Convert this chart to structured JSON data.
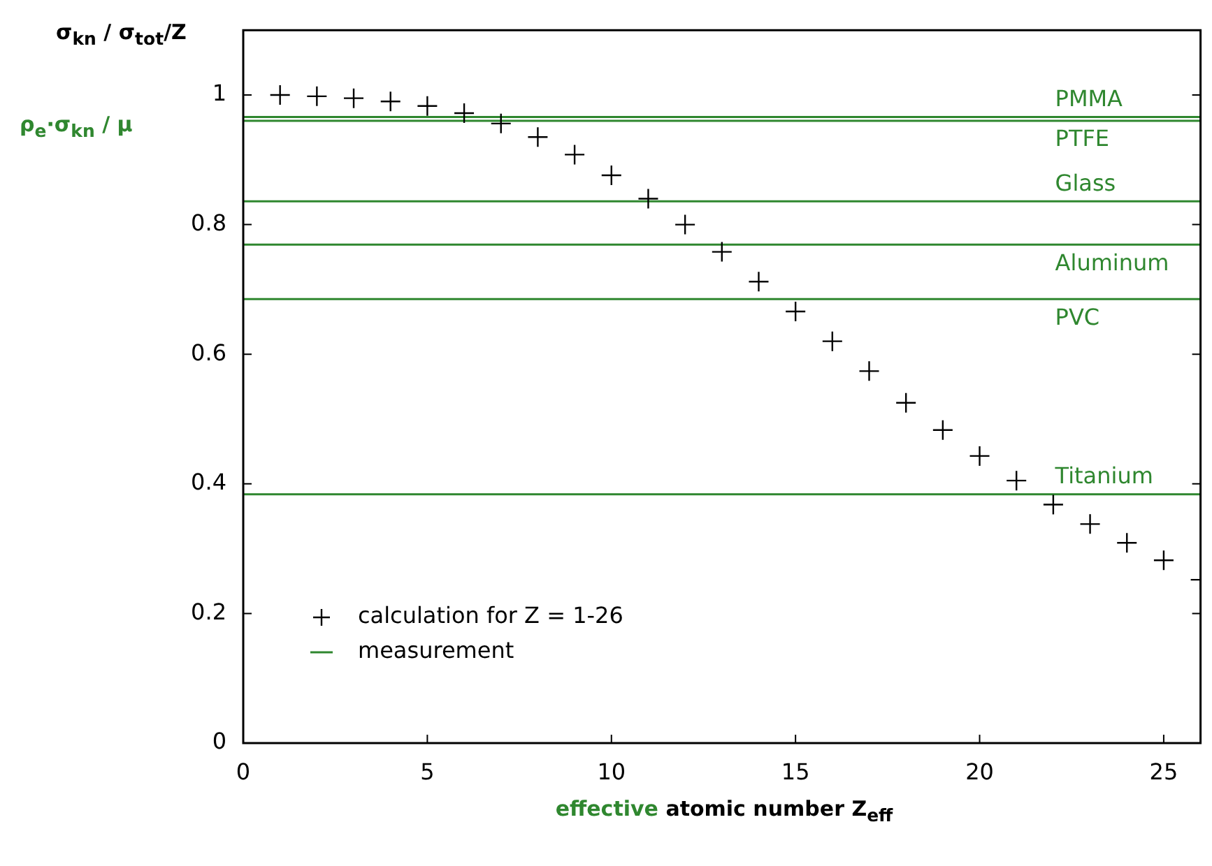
{
  "chart_data": {
    "type": "scatter",
    "xlabel": "effective atomic number Z$_{eff}$",
    "ylabel": "σ$_{kn}$ / σ$_{tot}$/Z",
    "annotations": [
      "ρ$_{e}$·σ$_{kn}$ / μ"
    ],
    "xlim": [
      0,
      26
    ],
    "xticks": [
      0,
      5,
      10,
      15,
      20,
      25
    ],
    "ylim": [
      0,
      1.1
    ],
    "yticks": [
      0,
      0.2,
      0.4,
      0.6,
      0.8,
      1
    ],
    "grid": false,
    "legend": "bottom left",
    "marker": "cross",
    "series": [
      {
        "name": "calculation for Z = 1-26",
        "color": "#000000",
        "x": [
          1,
          2,
          3,
          4,
          5,
          6,
          7,
          8,
          9,
          10,
          11,
          12,
          13,
          14,
          15,
          16,
          17,
          18,
          19,
          20,
          21,
          22,
          23,
          24,
          25,
          26
        ],
        "values": [
          1.0,
          0.998,
          0.995,
          0.99,
          0.983,
          0.972,
          0.956,
          0.935,
          0.908,
          0.876,
          0.84,
          0.8,
          0.758,
          0.712,
          0.666,
          0.62,
          0.574,
          0.525,
          0.483,
          0.443,
          0.405,
          0.368,
          0.338,
          0.309,
          0.282,
          0.252
        ]
      },
      {
        "name": "measurement",
        "type": "line",
        "color": "#2f872f"
      }
    ],
    "ref_lines": [
      {
        "axis": "y",
        "value": 0.966,
        "label": "PMMA",
        "color": "#2f872f"
      },
      {
        "axis": "y",
        "value": 0.96,
        "label": "PTFE",
        "color": "#2f872f"
      },
      {
        "axis": "y",
        "value": 0.836,
        "label": "Glass",
        "color": "#2f872f"
      },
      {
        "axis": "y",
        "value": 0.769,
        "label": "Aluminum",
        "color": "#2f872f"
      },
      {
        "axis": "y",
        "value": 0.685,
        "label": "PVC",
        "color": "#2f872f"
      },
      {
        "axis": "y",
        "value": 0.384,
        "label": "Titanium",
        "color": "#2f872f"
      }
    ]
  }
}
